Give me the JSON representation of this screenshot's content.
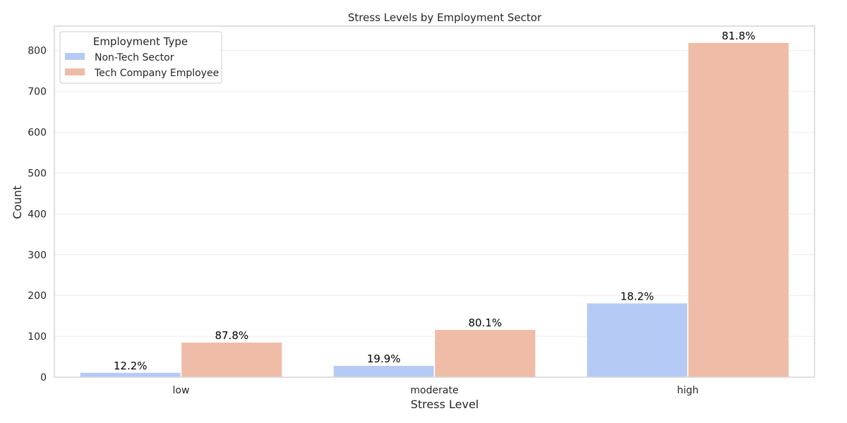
{
  "chart_data": {
    "type": "bar",
    "title": "Stress Levels by Employment Sector",
    "xlabel": "Stress Level",
    "ylabel": "Count",
    "categories": [
      "low",
      "moderate",
      "high"
    ],
    "ylim": [
      0,
      860
    ],
    "yticks": [
      0,
      100,
      200,
      300,
      400,
      500,
      600,
      700,
      800
    ],
    "grid": true,
    "legend": {
      "title": "Employment Type",
      "placement": "top-left"
    },
    "series": [
      {
        "name": "Non-Tech Sector",
        "color": "#b5cbf5",
        "values": [
          12,
          29,
          182
        ],
        "labels": [
          "12.2%",
          "19.9%",
          "18.2%"
        ]
      },
      {
        "name": "Tech Company Employee",
        "color": "#eebca7",
        "values": [
          86,
          117,
          820
        ],
        "labels": [
          "87.8%",
          "80.1%",
          "81.8%"
        ]
      }
    ]
  }
}
